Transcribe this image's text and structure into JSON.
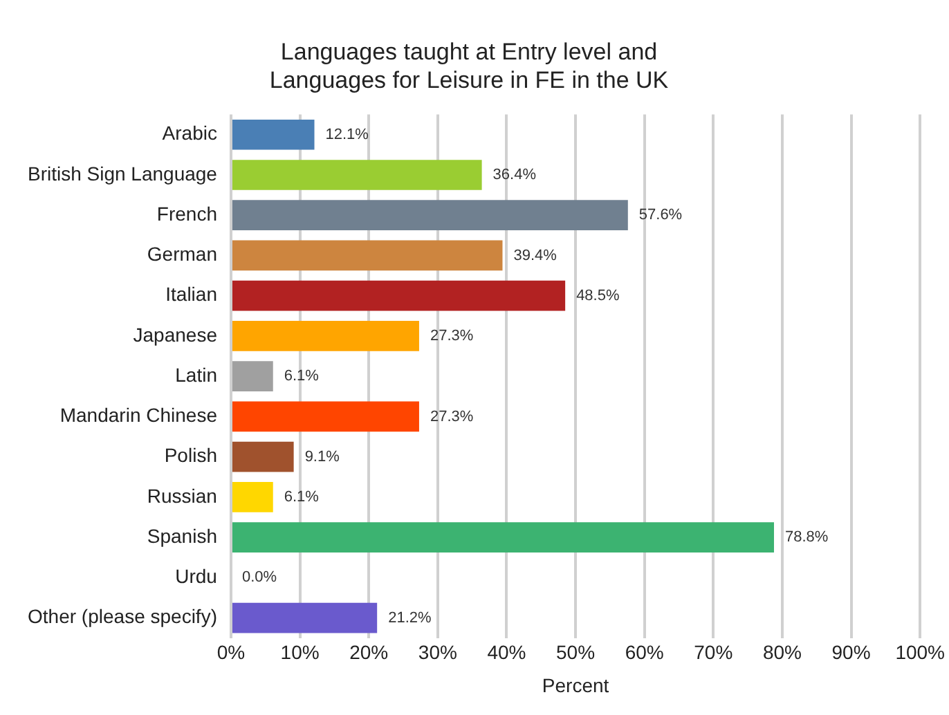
{
  "chart_data": {
    "type": "bar",
    "orientation": "horizontal",
    "title": "Languages taught at Entry level and\nLanguages for Leisure in FE in the UK",
    "xlabel": "Percent",
    "categories": [
      "Arabic",
      "British Sign Language",
      "French",
      "German",
      "Italian",
      "Japanese",
      "Latin",
      "Mandarin Chinese",
      "Polish",
      "Russian",
      "Spanish",
      "Urdu",
      "Other (please specify)"
    ],
    "values": [
      12.1,
      36.4,
      57.6,
      39.4,
      48.5,
      27.3,
      6.1,
      27.3,
      9.1,
      6.1,
      78.8,
      0.0,
      21.2
    ],
    "colors": [
      "#4a7fb5",
      "#9acd32",
      "#708090",
      "#cd853f",
      "#b22222",
      "#ffa500",
      "#a0a0a0",
      "#ff4500",
      "#a0522d",
      "#ffd700",
      "#3cb371",
      "#888888",
      "#6a5acd"
    ],
    "value_labels": [
      "12.1%",
      "36.4%",
      "57.6%",
      "39.4%",
      "48.5%",
      "27.3%",
      "6.1%",
      "27.3%",
      "9.1%",
      "6.1%",
      "78.8%",
      "0.0%",
      "21.2%"
    ],
    "xlim": [
      0,
      100
    ],
    "xticks": [
      {
        "value": 0,
        "label": "0%"
      },
      {
        "value": 10,
        "label": "10%"
      },
      {
        "value": 20,
        "label": "20%"
      },
      {
        "value": 30,
        "label": "30%"
      },
      {
        "value": 40,
        "label": "40%"
      },
      {
        "value": 50,
        "label": "50%"
      },
      {
        "value": 60,
        "label": "60%"
      },
      {
        "value": 70,
        "label": "70%"
      },
      {
        "value": 80,
        "label": "80%"
      },
      {
        "value": 90,
        "label": "90%"
      },
      {
        "value": 100,
        "label": "100%"
      }
    ],
    "grid": "x",
    "legend": false
  }
}
